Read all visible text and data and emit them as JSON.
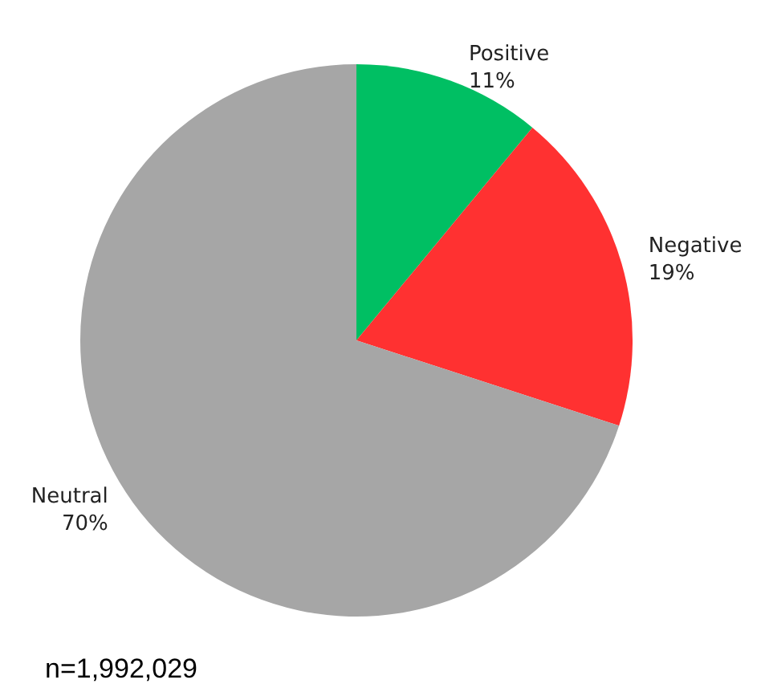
{
  "chart_data": {
    "type": "pie",
    "categories": [
      "Positive",
      "Negative",
      "Neutral"
    ],
    "values": [
      11,
      19,
      70
    ],
    "colors": [
      "#00bf63",
      "#ff3131",
      "#a6a6a6"
    ],
    "value_labels": [
      "11%",
      "19%",
      "70%"
    ],
    "annotations": [
      "n=1,992,029"
    ]
  }
}
